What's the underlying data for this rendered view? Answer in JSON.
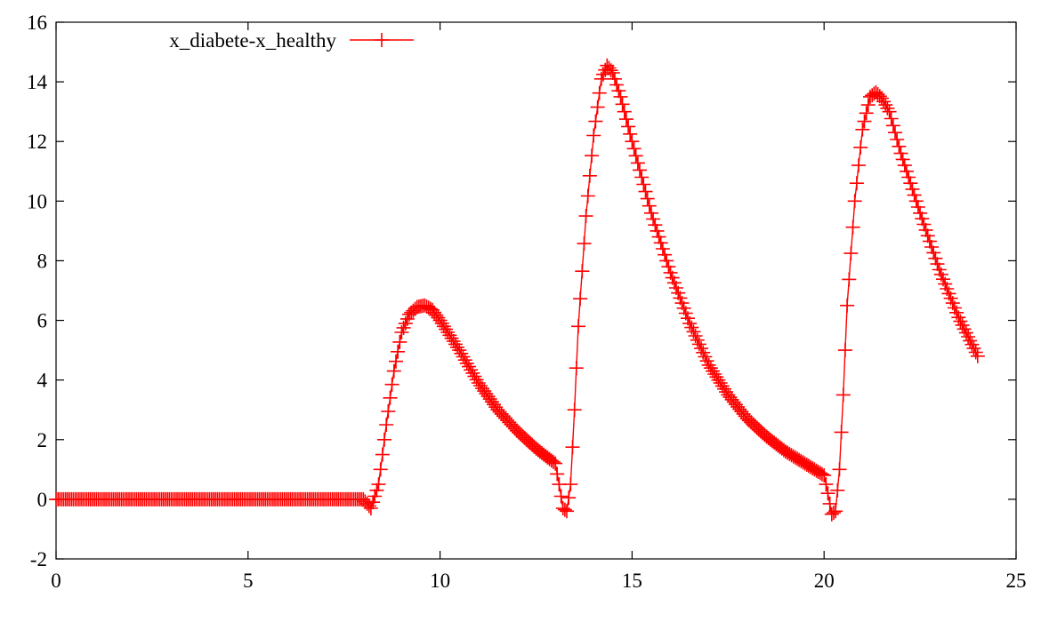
{
  "chart_data": {
    "type": "line",
    "title": "",
    "xlabel": "",
    "ylabel": "",
    "xlim": [
      0,
      25
    ],
    "ylim": [
      -2,
      16
    ],
    "x_ticks": [
      "0",
      "5",
      "10",
      "15",
      "20",
      "25"
    ],
    "y_ticks": [
      "-2",
      "0",
      "2",
      "4",
      "6",
      "8",
      "10",
      "12",
      "14",
      "16"
    ],
    "grid": false,
    "legend_position": "top-left",
    "series": [
      {
        "name": "x_diabete-x_healthy",
        "color": "#ff0000",
        "marker": "plus",
        "x": [
          0,
          8.0,
          8.2,
          8.4,
          8.6,
          8.8,
          9.0,
          9.2,
          9.4,
          9.6,
          9.8,
          10.0,
          10.5,
          11.0,
          11.5,
          12.0,
          12.5,
          13.0,
          13.1,
          13.2,
          13.3,
          13.4,
          13.5,
          13.6,
          13.8,
          14.0,
          14.2,
          14.35,
          14.5,
          14.7,
          15.0,
          15.5,
          16.0,
          16.5,
          17.0,
          17.5,
          18.0,
          18.5,
          19.0,
          19.5,
          20.0,
          20.1,
          20.2,
          20.3,
          20.4,
          20.5,
          20.6,
          20.8,
          21.0,
          21.2,
          21.35,
          21.5,
          21.7,
          22.0,
          22.5,
          23.0,
          23.5,
          24.0
        ],
        "y": [
          0,
          0,
          -0.3,
          0.5,
          2.5,
          4.3,
          5.6,
          6.2,
          6.45,
          6.5,
          6.35,
          6.0,
          5.0,
          3.9,
          3.0,
          2.3,
          1.7,
          1.2,
          0.5,
          -0.3,
          -0.4,
          0.5,
          3.0,
          5.8,
          9.5,
          12.2,
          14.1,
          14.55,
          14.3,
          13.5,
          12.0,
          9.6,
          7.6,
          5.9,
          4.5,
          3.5,
          2.7,
          2.1,
          1.6,
          1.2,
          0.8,
          0.2,
          -0.5,
          -0.4,
          1.0,
          3.5,
          6.5,
          10.0,
          12.4,
          13.5,
          13.65,
          13.45,
          13.0,
          11.6,
          9.6,
          7.7,
          6.1,
          4.8
        ]
      }
    ]
  }
}
